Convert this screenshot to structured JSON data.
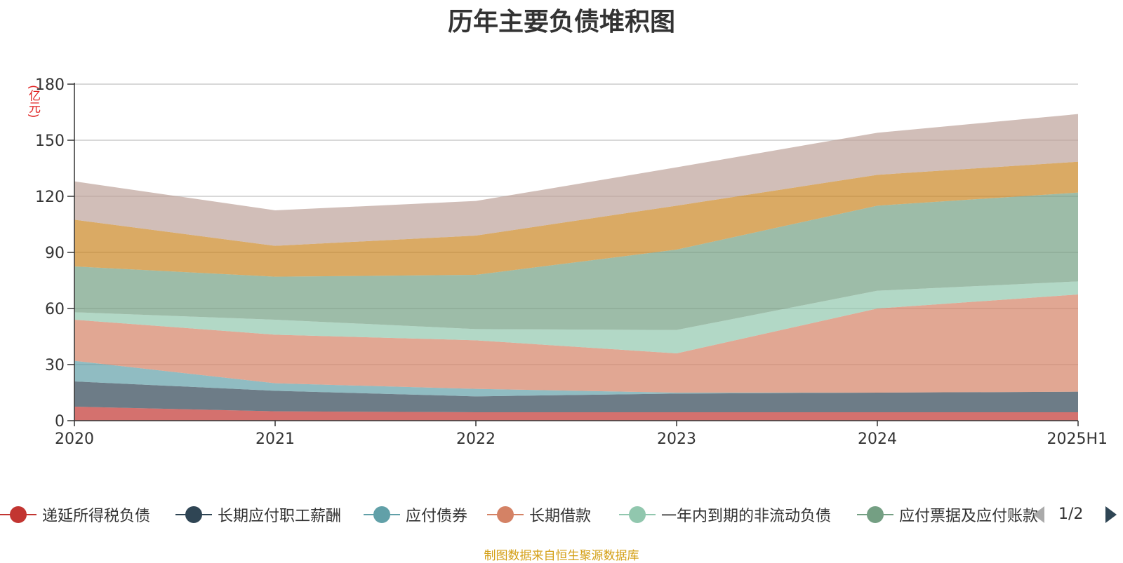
{
  "chart_data": {
    "type": "area",
    "stacked": true,
    "title": "历年主要负债堆积图",
    "y_unit": "(亿元)",
    "categories": [
      "2020",
      "2021",
      "2022",
      "2023",
      "2024",
      "2025H1"
    ],
    "ylim": [
      0,
      180
    ],
    "yticks": [
      0,
      30,
      60,
      90,
      120,
      150,
      180
    ],
    "grid": true,
    "legend_position": "bottom",
    "series": [
      {
        "name": "递延所得税负债",
        "color": "#c23531",
        "values": [
          7.5,
          5.0,
          4.5,
          4.5,
          4.5,
          4.5
        ]
      },
      {
        "name": "长期应付职工薪酬",
        "color": "#2f4554",
        "values": [
          13.5,
          11.0,
          8.5,
          10.0,
          10.5,
          11.0
        ]
      },
      {
        "name": "应付债券",
        "color": "#61a0a8",
        "values": [
          11.0,
          4.0,
          4.0,
          0.5,
          0.0,
          0.0
        ]
      },
      {
        "name": "长期借款",
        "color": "#d48265",
        "values": [
          22.0,
          26.0,
          26.0,
          21.0,
          45.0,
          52.0
        ]
      },
      {
        "name": "一年内到期的非流动负债",
        "color": "#91c7ae",
        "values": [
          4.0,
          8.0,
          6.0,
          12.5,
          9.5,
          7.0
        ]
      },
      {
        "name": "应付票据及应付账款",
        "color": "#749f83",
        "values": [
          24.5,
          23.0,
          29.0,
          43.0,
          45.5,
          47.5
        ]
      },
      {
        "name": "",
        "color": "#ca8622",
        "values": [
          25.0,
          16.5,
          21.0,
          23.5,
          16.5,
          16.5
        ]
      },
      {
        "name": "",
        "color": "#bda29a",
        "values": [
          20.5,
          19.0,
          18.5,
          20.5,
          22.5,
          25.5
        ]
      }
    ]
  },
  "legend": {
    "page_label": "1/2",
    "visible_items": [
      "递延所得税负债",
      "长期应付职工薪酬",
      "应付债券",
      "长期借款",
      "一年内到期的非流动负债",
      "应付票据及应付账款"
    ]
  },
  "source_note": "制图数据来自恒生聚源数据库"
}
